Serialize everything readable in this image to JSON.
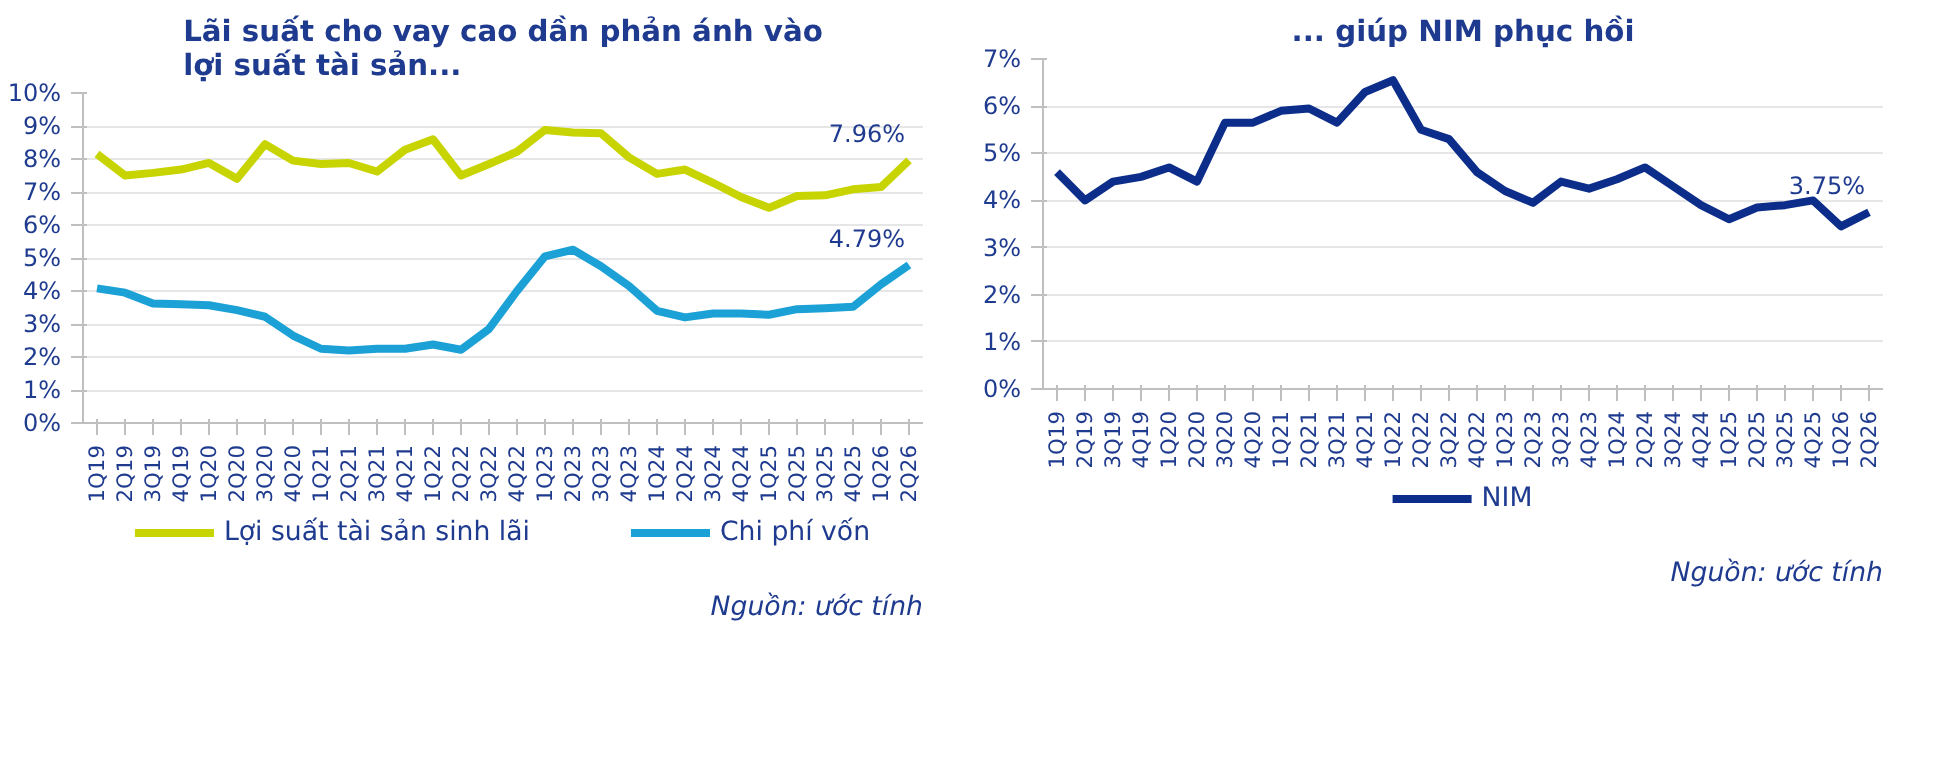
{
  "chart_data": [
    {
      "type": "line",
      "title": "Lãi suất cho vay cao dần phản ánh vào\nlợi suất tài sản...",
      "categories": [
        "1Q19",
        "2Q19",
        "3Q19",
        "4Q19",
        "1Q20",
        "2Q20",
        "3Q20",
        "4Q20",
        "1Q21",
        "2Q21",
        "3Q21",
        "4Q21",
        "1Q22",
        "2Q22",
        "3Q22",
        "4Q22",
        "1Q23",
        "2Q23",
        "3Q23",
        "4Q23",
        "1Q24",
        "2Q24",
        "3Q24",
        "4Q24",
        "1Q25",
        "2Q25",
        "3Q25",
        "4Q25",
        "1Q26",
        "2Q26"
      ],
      "series": [
        {
          "name": "Lợi suất tài sản sinh lãi",
          "color": "#c8d400",
          "values": [
            8.15,
            7.5,
            7.58,
            7.68,
            7.88,
            7.4,
            8.45,
            7.95,
            7.85,
            7.88,
            7.62,
            8.28,
            8.6,
            7.5,
            7.85,
            8.22,
            8.88,
            8.8,
            8.78,
            8.05,
            7.55,
            7.68,
            7.28,
            6.85,
            6.52,
            6.88,
            6.9,
            7.08,
            7.15,
            7.96
          ],
          "value_labels": [
            null,
            null,
            null,
            null,
            null,
            null,
            null,
            null,
            null,
            null,
            null,
            null,
            null,
            null,
            null,
            null,
            null,
            null,
            null,
            null,
            null,
            null,
            null,
            null,
            null,
            null,
            null,
            null,
            null,
            "7.96%"
          ]
        },
        {
          "name": "Chi phí vốn",
          "color": "#1ba1d6",
          "values": [
            4.08,
            3.95,
            3.62,
            3.6,
            3.57,
            3.42,
            3.22,
            2.65,
            2.25,
            2.2,
            2.25,
            2.25,
            2.38,
            2.22,
            2.85,
            4.0,
            5.05,
            5.25,
            4.75,
            4.15,
            3.4,
            3.2,
            3.32,
            3.32,
            3.28,
            3.45,
            3.48,
            3.52,
            4.2,
            4.79
          ],
          "value_labels": [
            null,
            null,
            null,
            null,
            null,
            null,
            null,
            null,
            null,
            null,
            null,
            null,
            null,
            null,
            null,
            null,
            null,
            null,
            null,
            null,
            null,
            null,
            null,
            null,
            null,
            null,
            null,
            null,
            null,
            "4.79%"
          ]
        }
      ],
      "ylim": [
        0,
        10
      ],
      "yticks": [
        {
          "value": 0,
          "label": "0%"
        },
        {
          "value": 1,
          "label": "1%"
        },
        {
          "value": 2,
          "label": "2%"
        },
        {
          "value": 3,
          "label": "3%"
        },
        {
          "value": 4,
          "label": "4%"
        },
        {
          "value": 5,
          "label": "5%"
        },
        {
          "value": 6,
          "label": "6%"
        },
        {
          "value": 7,
          "label": "7%"
        },
        {
          "value": 8,
          "label": "8%"
        },
        {
          "value": 9,
          "label": "9%"
        },
        {
          "value": 10,
          "label": "10%"
        }
      ],
      "grid": "y",
      "legend": "bottom",
      "annotations": [
        "Nguồn: ước tính"
      ]
    },
    {
      "type": "line",
      "title": "... giúp NIM phục hồi",
      "categories": [
        "1Q19",
        "2Q19",
        "3Q19",
        "4Q19",
        "1Q20",
        "2Q20",
        "3Q20",
        "4Q20",
        "1Q21",
        "2Q21",
        "3Q21",
        "4Q21",
        "1Q22",
        "2Q22",
        "3Q22",
        "4Q22",
        "1Q23",
        "2Q23",
        "3Q23",
        "4Q23",
        "1Q24",
        "2Q24",
        "3Q24",
        "4Q24",
        "1Q25",
        "2Q25",
        "3Q25",
        "4Q25",
        "1Q26",
        "2Q26"
      ],
      "series": [
        {
          "name": "NIM",
          "color": "#0c2d8a",
          "values": [
            4.6,
            4.0,
            4.4,
            4.5,
            4.7,
            4.4,
            5.65,
            5.65,
            5.9,
            5.95,
            5.65,
            6.3,
            6.55,
            5.5,
            5.3,
            4.6,
            4.2,
            3.95,
            4.4,
            4.25,
            4.45,
            4.7,
            4.3,
            3.9,
            3.6,
            3.85,
            3.9,
            4.0,
            3.45,
            3.75
          ],
          "value_labels": [
            null,
            null,
            null,
            null,
            null,
            null,
            null,
            null,
            null,
            null,
            null,
            null,
            null,
            null,
            null,
            null,
            null,
            null,
            null,
            null,
            null,
            null,
            null,
            null,
            null,
            null,
            null,
            null,
            null,
            "3.75%"
          ]
        }
      ],
      "ylim": [
        0,
        7
      ],
      "yticks": [
        {
          "value": 0,
          "label": "0%"
        },
        {
          "value": 1,
          "label": "1%"
        },
        {
          "value": 2,
          "label": "2%"
        },
        {
          "value": 3,
          "label": "3%"
        },
        {
          "value": 4,
          "label": "4%"
        },
        {
          "value": 5,
          "label": "5%"
        },
        {
          "value": 6,
          "label": "6%"
        },
        {
          "value": 7,
          "label": "7%"
        }
      ],
      "grid": "y",
      "legend": "bottom",
      "annotations": [
        "Nguồn: ước tính"
      ]
    }
  ]
}
